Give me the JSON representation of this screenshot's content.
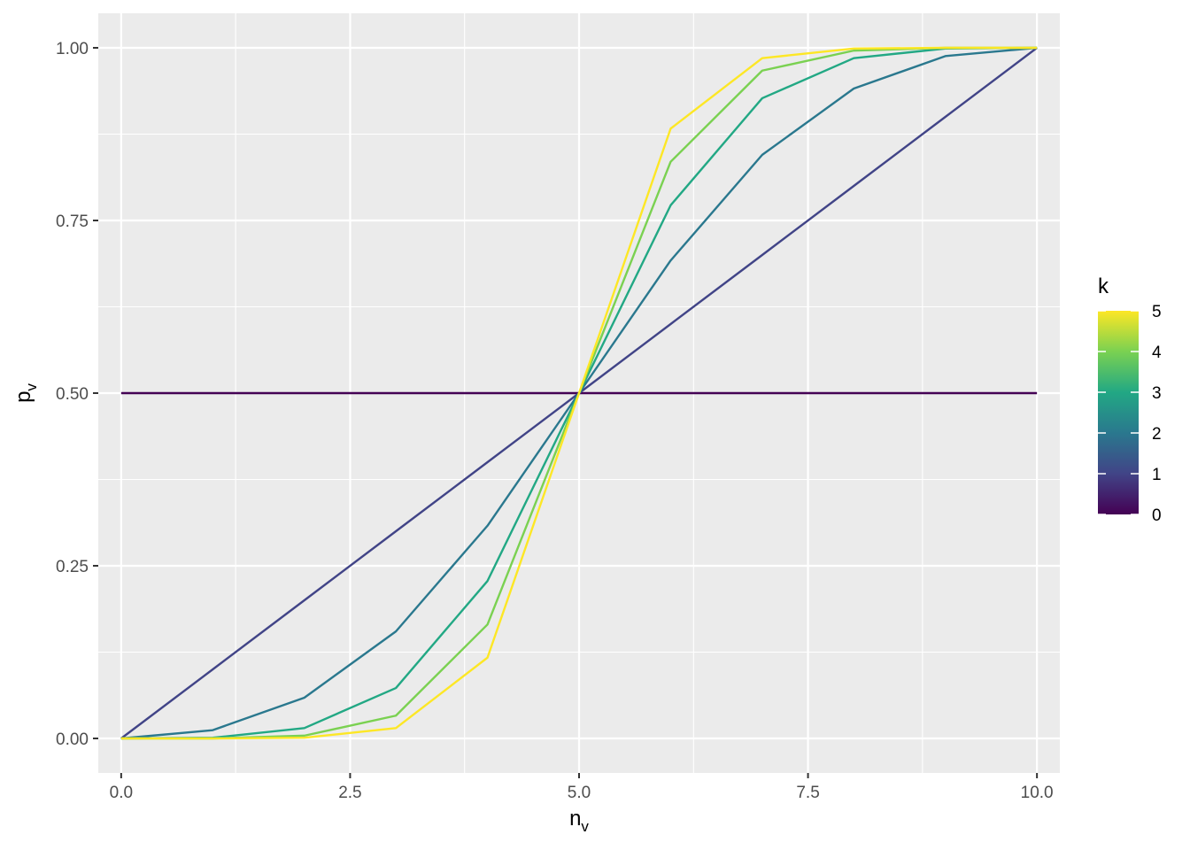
{
  "chart_data": {
    "type": "line",
    "xlabel": {
      "main": "n",
      "sub": "v"
    },
    "ylabel": {
      "main": "p",
      "sub": "v"
    },
    "xlim": [
      -0.25,
      10.25
    ],
    "ylim": [
      -0.05,
      1.05
    ],
    "x_ticks": [
      0,
      2.5,
      5,
      7.5,
      10
    ],
    "x_tick_labels": [
      "0.0",
      "2.5",
      "5.0",
      "7.5",
      "10.0"
    ],
    "y_ticks": [
      0,
      0.25,
      0.5,
      0.75,
      1
    ],
    "y_tick_labels": [
      "0.00",
      "0.25",
      "0.50",
      "0.75",
      "1.00"
    ],
    "x": [
      0,
      1,
      2,
      3,
      4,
      5,
      6,
      7,
      8,
      9,
      10
    ],
    "series": [
      {
        "k": 0,
        "color": "#440154",
        "values": [
          0.5,
          0.5,
          0.5,
          0.5,
          0.5,
          0.5,
          0.5,
          0.5,
          0.5,
          0.5,
          0.5
        ]
      },
      {
        "k": 1,
        "color": "#414487",
        "values": [
          0.0,
          0.1,
          0.2,
          0.3,
          0.4,
          0.5,
          0.6,
          0.7,
          0.8,
          0.9,
          1.0
        ]
      },
      {
        "k": 2,
        "color": "#2A788E",
        "values": [
          0.0,
          0.012,
          0.059,
          0.155,
          0.308,
          0.5,
          0.692,
          0.845,
          0.941,
          0.988,
          1.0
        ]
      },
      {
        "k": 3,
        "color": "#22A884",
        "values": [
          0.0,
          0.001,
          0.015,
          0.073,
          0.228,
          0.5,
          0.772,
          0.927,
          0.985,
          0.999,
          1.0
        ]
      },
      {
        "k": 4,
        "color": "#7AD151",
        "values": [
          0.0,
          0.0,
          0.004,
          0.033,
          0.165,
          0.5,
          0.835,
          0.967,
          0.996,
          1.0,
          1.0
        ]
      },
      {
        "k": 5,
        "color": "#FDE725",
        "values": [
          0.0,
          0.0,
          0.001,
          0.015,
          0.117,
          0.5,
          0.883,
          0.985,
          0.999,
          1.0,
          1.0
        ]
      }
    ],
    "legend": {
      "title": "k",
      "position": "right",
      "min": 0,
      "max": 5,
      "breaks": [
        0,
        1,
        2,
        3,
        4,
        5
      ],
      "labels": [
        "0",
        "1",
        "2",
        "3",
        "4",
        "5"
      ],
      "colors": [
        "#440154",
        "#414487",
        "#2A788E",
        "#22A884",
        "#7AD151",
        "#FDE725"
      ]
    },
    "grid": true,
    "panel_background": "#EBEBEB",
    "grid_color": "#FFFFFF"
  }
}
